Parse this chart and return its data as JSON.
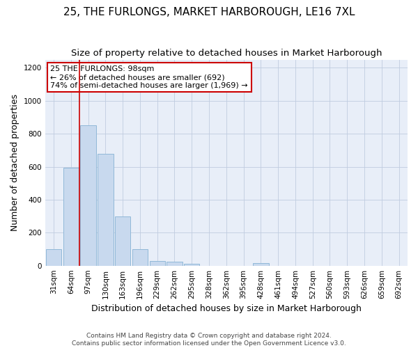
{
  "title": "25, THE FURLONGS, MARKET HARBOROUGH, LE16 7XL",
  "subtitle": "Size of property relative to detached houses in Market Harborough",
  "xlabel": "Distribution of detached houses by size in Market Harborough",
  "ylabel": "Number of detached properties",
  "footer_line1": "Contains HM Land Registry data © Crown copyright and database right 2024.",
  "footer_line2": "Contains public sector information licensed under the Open Government Licence v3.0.",
  "bar_labels": [
    "31sqm",
    "64sqm",
    "97sqm",
    "130sqm",
    "163sqm",
    "196sqm",
    "229sqm",
    "262sqm",
    "295sqm",
    "328sqm",
    "362sqm",
    "395sqm",
    "428sqm",
    "461sqm",
    "494sqm",
    "527sqm",
    "560sqm",
    "593sqm",
    "626sqm",
    "659sqm",
    "692sqm"
  ],
  "bar_values": [
    100,
    595,
    850,
    680,
    300,
    100,
    30,
    22,
    12,
    0,
    0,
    0,
    15,
    0,
    0,
    0,
    0,
    0,
    0,
    0,
    0
  ],
  "bar_color": "#c8d9ee",
  "bar_edge_color": "#90b8d8",
  "annotation_title": "25 THE FURLONGS: 98sqm",
  "annotation_line2": "← 26% of detached houses are smaller (692)",
  "annotation_line3": "74% of semi-detached houses are larger (1,969) →",
  "vline_color": "#cc0000",
  "annotation_box_edge_color": "#cc0000",
  "ylim": [
    0,
    1250
  ],
  "yticks": [
    0,
    200,
    400,
    600,
    800,
    1000,
    1200
  ],
  "background_color": "#ffffff",
  "plot_bg_color": "#e8eef8",
  "grid_color": "#c0cce0",
  "title_fontsize": 11,
  "subtitle_fontsize": 9.5,
  "ylabel_fontsize": 9,
  "xlabel_fontsize": 9,
  "annotation_fontsize": 8,
  "footer_fontsize": 6.5,
  "tick_fontsize": 7.5
}
